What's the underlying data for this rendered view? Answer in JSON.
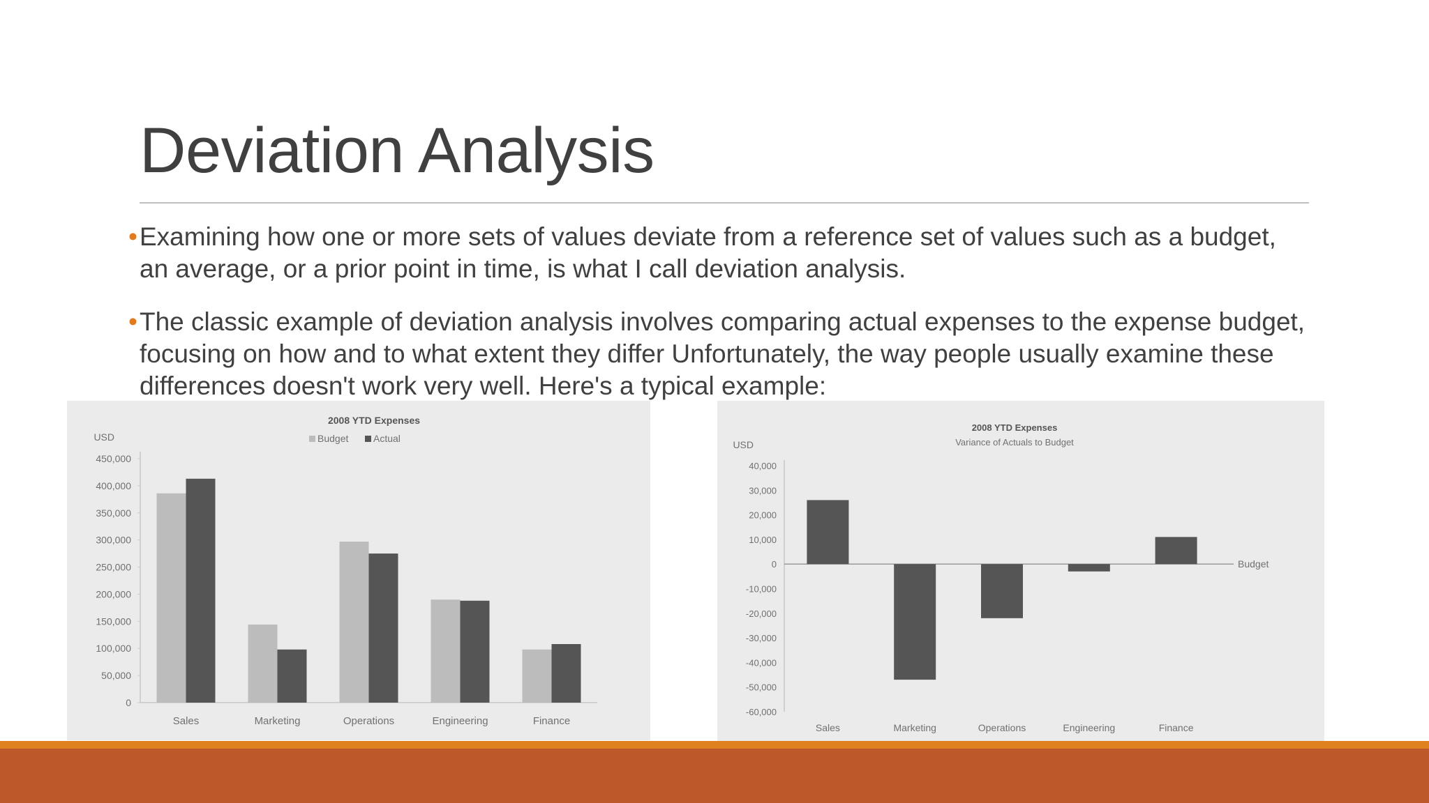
{
  "slide": {
    "title": "Deviation Analysis",
    "bullets": [
      "Examining how one or more sets of values deviate from a reference set of values such as a budget, an average, or a prior point in time, is what I call deviation analysis.",
      "The classic example of deviation analysis involves comparing actual expenses to the expense budget, focusing on how and to what extent they differ Unfortunately, the way people usually examine these differences doesn't work very well. Here's a typical example:"
    ],
    "bullet_mark": "•",
    "colors": {
      "accent": "#e07b1f",
      "footer": "#bd582b",
      "budget_bar": "#bcbcbc",
      "actual_bar": "#555555",
      "variance_bar": "#555555"
    }
  },
  "chart_data": [
    {
      "type": "bar",
      "title": "2008 YTD Expenses",
      "subtitle": "",
      "ylabel": "USD",
      "xlabel": "",
      "categories": [
        "Sales",
        "Marketing",
        "Operations",
        "Engineering",
        "Finance"
      ],
      "series": [
        {
          "name": "Budget",
          "values": [
            386000,
            144000,
            297000,
            190000,
            98000
          ],
          "color": "#bcbcbc"
        },
        {
          "name": "Actual",
          "values": [
            413000,
            98000,
            275000,
            188000,
            108000
          ],
          "color": "#555555"
        }
      ],
      "ylim": [
        0,
        450000
      ],
      "yticks": [
        0,
        50000,
        100000,
        150000,
        200000,
        250000,
        300000,
        350000,
        400000,
        450000
      ],
      "ytick_labels": [
        "0",
        "50,000",
        "100,000",
        "150,000",
        "200,000",
        "250,000",
        "300,000",
        "350,000",
        "400,000",
        "450,000"
      ],
      "legend": "top-center",
      "grid": false
    },
    {
      "type": "bar",
      "title": "2008 YTD Expenses",
      "subtitle": "Variance of Actuals to Budget",
      "ylabel": "USD",
      "xlabel": "",
      "categories": [
        "Sales",
        "Marketing",
        "Operations",
        "Engineering",
        "Finance"
      ],
      "series": [
        {
          "name": "",
          "values": [
            26000,
            -47000,
            -22000,
            -3000,
            11000
          ],
          "color": "#555555"
        }
      ],
      "ylim": [
        -60000,
        40000
      ],
      "yticks": [
        40000,
        30000,
        20000,
        10000,
        0,
        -10000,
        -20000,
        -30000,
        -40000,
        -50000,
        -60000
      ],
      "ytick_labels": [
        "40,000",
        "30,000",
        "20,000",
        "10,000",
        "0",
        "-10,000",
        "-20,000",
        "-30,000",
        "-40,000",
        "-50,000",
        "-60,000"
      ],
      "reference_line_label": "Budget",
      "grid": false
    }
  ]
}
